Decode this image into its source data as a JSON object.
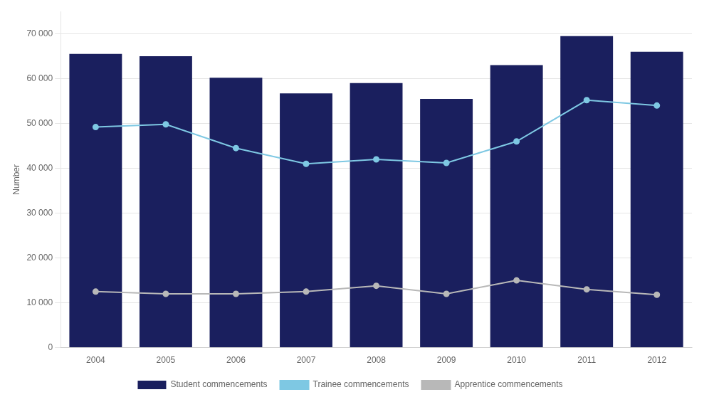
{
  "chart_data": {
    "type": "bar",
    "ylabel": "Number",
    "categories": [
      "2004",
      "2005",
      "2006",
      "2007",
      "2008",
      "2009",
      "2010",
      "2011",
      "2012"
    ],
    "series": [
      {
        "name": "Student commencements",
        "type": "bar",
        "color": "#1a1f5e",
        "values": [
          65500,
          65000,
          60200,
          56700,
          59000,
          55500,
          63000,
          69500,
          66000
        ]
      },
      {
        "name": "Trainee commencements",
        "type": "line",
        "color": "#7ec8e3",
        "marker": "circle",
        "values": [
          49200,
          49800,
          44500,
          41000,
          42000,
          41200,
          46000,
          55200,
          54000
        ]
      },
      {
        "name": "Apprentice commencements",
        "type": "line",
        "color": "#b8b8b8",
        "marker": "circle",
        "values": [
          12500,
          12000,
          12000,
          12500,
          13800,
          12000,
          15000,
          13000,
          11800
        ]
      }
    ],
    "ylim": [
      0,
      75000
    ],
    "yticks": [
      0,
      {
        "value": 10000,
        "label": "10 000"
      },
      {
        "value": 20000,
        "label": "20 000"
      },
      {
        "value": 30000,
        "label": "30 000"
      },
      {
        "value": 40000,
        "label": "40 000"
      },
      {
        "value": 50000,
        "label": "50 000"
      },
      {
        "value": 60000,
        "label": "60 000"
      },
      {
        "value": 70000,
        "label": "70 000"
      }
    ],
    "grid": "y",
    "legend": "bottom"
  }
}
